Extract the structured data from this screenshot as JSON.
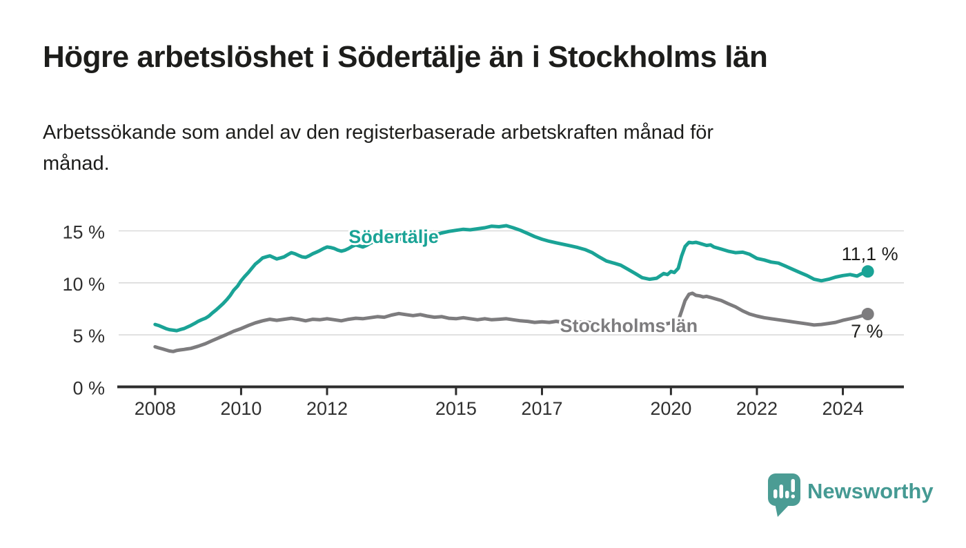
{
  "header": {
    "title": "Högre arbetslöshet i Södertälje än i Stockholms län",
    "subtitle": "Arbetssökande som andel av den registerbaserade arbetskraften månad för månad.",
    "subtitle_lines": [
      "Arbetssökande som andel av den registerbaserade arbetskraften månad för",
      "månad."
    ]
  },
  "chart_data": {
    "type": "line",
    "unit": "%",
    "xlim": [
      2007.12,
      2025.42
    ],
    "ylim": [
      0,
      15
    ],
    "grid": true,
    "x_ticks": [
      2008,
      2010,
      2012,
      2015,
      2017,
      2020,
      2022,
      2024
    ],
    "x_tick_labels": [
      "2008",
      "2010",
      "2012",
      "2015",
      "2017",
      "2020",
      "2022",
      "2024"
    ],
    "y_ticks": [
      0,
      5,
      10,
      15
    ],
    "y_tick_labels": [
      "0 %",
      "5 %",
      "10 %",
      "15 %"
    ],
    "colors": {
      "sodertalje": "#1aa396",
      "stockholms_lan": "#7d7c7e",
      "axis": "#2d2d2d",
      "gridline": "#d9d9d9",
      "text": "#1d1d1b"
    },
    "series": [
      {
        "id": "sodertalje",
        "name": "Södertälje",
        "color": "#1aa396",
        "label_anchor": {
          "x": 2013.55,
          "v": 13.84
        },
        "end_label": "11,1 %",
        "end_value": 11.1,
        "end_label_offset": [
          44,
          -16.5
        ],
        "points": [
          [
            2008.0,
            6.0
          ],
          [
            2008.08,
            5.9
          ],
          [
            2008.17,
            5.75
          ],
          [
            2008.25,
            5.6
          ],
          [
            2008.33,
            5.5
          ],
          [
            2008.42,
            5.45
          ],
          [
            2008.5,
            5.4
          ],
          [
            2008.58,
            5.5
          ],
          [
            2008.67,
            5.6
          ],
          [
            2008.75,
            5.75
          ],
          [
            2008.83,
            5.9
          ],
          [
            2008.92,
            6.1
          ],
          [
            2009.0,
            6.3
          ],
          [
            2009.08,
            6.45
          ],
          [
            2009.17,
            6.6
          ],
          [
            2009.25,
            6.8
          ],
          [
            2009.33,
            7.1
          ],
          [
            2009.42,
            7.4
          ],
          [
            2009.5,
            7.7
          ],
          [
            2009.58,
            8.0
          ],
          [
            2009.67,
            8.4
          ],
          [
            2009.75,
            8.8
          ],
          [
            2009.83,
            9.3
          ],
          [
            2009.92,
            9.7
          ],
          [
            2010.0,
            10.2
          ],
          [
            2010.08,
            10.6
          ],
          [
            2010.17,
            11.0
          ],
          [
            2010.25,
            11.4
          ],
          [
            2010.33,
            11.8
          ],
          [
            2010.42,
            12.1
          ],
          [
            2010.5,
            12.4
          ],
          [
            2010.58,
            12.5
          ],
          [
            2010.67,
            12.6
          ],
          [
            2010.75,
            12.45
          ],
          [
            2010.83,
            12.3
          ],
          [
            2010.92,
            12.4
          ],
          [
            2011.0,
            12.5
          ],
          [
            2011.08,
            12.7
          ],
          [
            2011.17,
            12.9
          ],
          [
            2011.25,
            12.8
          ],
          [
            2011.33,
            12.65
          ],
          [
            2011.42,
            12.5
          ],
          [
            2011.5,
            12.45
          ],
          [
            2011.58,
            12.6
          ],
          [
            2011.67,
            12.8
          ],
          [
            2011.75,
            12.95
          ],
          [
            2011.83,
            13.1
          ],
          [
            2011.92,
            13.3
          ],
          [
            2012.0,
            13.45
          ],
          [
            2012.08,
            13.4
          ],
          [
            2012.17,
            13.3
          ],
          [
            2012.25,
            13.15
          ],
          [
            2012.33,
            13.05
          ],
          [
            2012.42,
            13.15
          ],
          [
            2012.5,
            13.3
          ],
          [
            2012.58,
            13.5
          ],
          [
            2012.67,
            13.65
          ],
          [
            2012.75,
            13.55
          ],
          [
            2012.83,
            13.45
          ],
          [
            2012.92,
            13.6
          ],
          [
            2013.0,
            13.8
          ],
          [
            2013.08,
            13.95
          ],
          [
            2013.17,
            14.1
          ],
          [
            2013.25,
            14.05
          ],
          [
            2013.33,
            13.95
          ],
          [
            2013.42,
            14.05
          ],
          [
            2013.5,
            14.2
          ],
          [
            2013.58,
            14.3
          ],
          [
            2013.67,
            14.25
          ],
          [
            2013.75,
            14.15
          ],
          [
            2013.83,
            14.2
          ],
          [
            2013.92,
            14.3
          ],
          [
            2014.0,
            14.4
          ],
          [
            2014.17,
            14.55
          ],
          [
            2014.33,
            14.45
          ],
          [
            2014.5,
            14.6
          ],
          [
            2014.67,
            14.8
          ],
          [
            2014.83,
            14.95
          ],
          [
            2015.0,
            15.05
          ],
          [
            2015.17,
            15.15
          ],
          [
            2015.33,
            15.1
          ],
          [
            2015.5,
            15.2
          ],
          [
            2015.67,
            15.3
          ],
          [
            2015.83,
            15.45
          ],
          [
            2016.0,
            15.4
          ],
          [
            2016.17,
            15.5
          ],
          [
            2016.33,
            15.3
          ],
          [
            2016.5,
            15.05
          ],
          [
            2016.67,
            14.75
          ],
          [
            2016.83,
            14.45
          ],
          [
            2017.0,
            14.2
          ],
          [
            2017.17,
            14.0
          ],
          [
            2017.33,
            13.85
          ],
          [
            2017.5,
            13.7
          ],
          [
            2017.67,
            13.55
          ],
          [
            2017.83,
            13.4
          ],
          [
            2018.0,
            13.2
          ],
          [
            2018.17,
            12.9
          ],
          [
            2018.33,
            12.5
          ],
          [
            2018.5,
            12.1
          ],
          [
            2018.67,
            11.9
          ],
          [
            2018.83,
            11.7
          ],
          [
            2019.0,
            11.3
          ],
          [
            2019.17,
            10.9
          ],
          [
            2019.33,
            10.5
          ],
          [
            2019.5,
            10.35
          ],
          [
            2019.67,
            10.45
          ],
          [
            2019.83,
            10.9
          ],
          [
            2019.92,
            10.8
          ],
          [
            2020.0,
            11.1
          ],
          [
            2020.08,
            11.0
          ],
          [
            2020.17,
            11.4
          ],
          [
            2020.25,
            12.6
          ],
          [
            2020.33,
            13.5
          ],
          [
            2020.42,
            13.9
          ],
          [
            2020.5,
            13.85
          ],
          [
            2020.58,
            13.9
          ],
          [
            2020.67,
            13.8
          ],
          [
            2020.75,
            13.7
          ],
          [
            2020.83,
            13.6
          ],
          [
            2020.92,
            13.65
          ],
          [
            2021.0,
            13.45
          ],
          [
            2021.17,
            13.25
          ],
          [
            2021.33,
            13.05
          ],
          [
            2021.5,
            12.9
          ],
          [
            2021.67,
            12.95
          ],
          [
            2021.83,
            12.75
          ],
          [
            2022.0,
            12.35
          ],
          [
            2022.17,
            12.2
          ],
          [
            2022.33,
            12.0
          ],
          [
            2022.5,
            11.9
          ],
          [
            2022.67,
            11.6
          ],
          [
            2022.83,
            11.3
          ],
          [
            2023.0,
            11.0
          ],
          [
            2023.17,
            10.7
          ],
          [
            2023.33,
            10.35
          ],
          [
            2023.5,
            10.2
          ],
          [
            2023.67,
            10.35
          ],
          [
            2023.83,
            10.55
          ],
          [
            2024.0,
            10.7
          ],
          [
            2024.17,
            10.8
          ],
          [
            2024.33,
            10.65
          ],
          [
            2024.42,
            10.85
          ],
          [
            2024.58,
            11.1
          ]
        ]
      },
      {
        "id": "stockholms-lan",
        "name": "Stockholms län",
        "color": "#7d7c7e",
        "label_anchor": {
          "x": 2019.02,
          "v": 5.28
        },
        "end_label": "7 %",
        "end_value": 7.0,
        "end_label_offset": [
          22,
          34
        ],
        "points": [
          [
            2008.0,
            3.85
          ],
          [
            2008.08,
            3.75
          ],
          [
            2008.17,
            3.65
          ],
          [
            2008.25,
            3.55
          ],
          [
            2008.33,
            3.45
          ],
          [
            2008.42,
            3.4
          ],
          [
            2008.5,
            3.5
          ],
          [
            2008.58,
            3.55
          ],
          [
            2008.67,
            3.6
          ],
          [
            2008.75,
            3.65
          ],
          [
            2008.83,
            3.7
          ],
          [
            2008.92,
            3.8
          ],
          [
            2009.0,
            3.9
          ],
          [
            2009.17,
            4.15
          ],
          [
            2009.33,
            4.45
          ],
          [
            2009.5,
            4.75
          ],
          [
            2009.67,
            5.05
          ],
          [
            2009.83,
            5.35
          ],
          [
            2010.0,
            5.6
          ],
          [
            2010.17,
            5.9
          ],
          [
            2010.33,
            6.15
          ],
          [
            2010.5,
            6.35
          ],
          [
            2010.67,
            6.5
          ],
          [
            2010.83,
            6.4
          ],
          [
            2011.0,
            6.5
          ],
          [
            2011.17,
            6.6
          ],
          [
            2011.33,
            6.5
          ],
          [
            2011.5,
            6.35
          ],
          [
            2011.67,
            6.5
          ],
          [
            2011.83,
            6.45
          ],
          [
            2012.0,
            6.55
          ],
          [
            2012.17,
            6.45
          ],
          [
            2012.33,
            6.35
          ],
          [
            2012.5,
            6.5
          ],
          [
            2012.67,
            6.6
          ],
          [
            2012.83,
            6.55
          ],
          [
            2013.0,
            6.65
          ],
          [
            2013.17,
            6.75
          ],
          [
            2013.33,
            6.7
          ],
          [
            2013.5,
            6.9
          ],
          [
            2013.67,
            7.05
          ],
          [
            2013.83,
            6.95
          ],
          [
            2014.0,
            6.85
          ],
          [
            2014.17,
            6.95
          ],
          [
            2014.33,
            6.8
          ],
          [
            2014.5,
            6.7
          ],
          [
            2014.67,
            6.75
          ],
          [
            2014.83,
            6.6
          ],
          [
            2015.0,
            6.55
          ],
          [
            2015.17,
            6.65
          ],
          [
            2015.33,
            6.55
          ],
          [
            2015.5,
            6.45
          ],
          [
            2015.67,
            6.55
          ],
          [
            2015.83,
            6.45
          ],
          [
            2016.0,
            6.5
          ],
          [
            2016.17,
            6.55
          ],
          [
            2016.33,
            6.45
          ],
          [
            2016.5,
            6.35
          ],
          [
            2016.67,
            6.3
          ],
          [
            2016.83,
            6.2
          ],
          [
            2017.0,
            6.25
          ],
          [
            2017.17,
            6.2
          ],
          [
            2017.33,
            6.3
          ],
          [
            2017.5,
            6.2
          ],
          [
            2017.67,
            6.1
          ],
          [
            2017.83,
            6.2
          ],
          [
            2018.0,
            6.25
          ],
          [
            2018.17,
            6.15
          ],
          [
            2018.33,
            6.1
          ],
          [
            2018.5,
            6.2
          ],
          [
            2018.67,
            6.1
          ],
          [
            2018.83,
            6.0
          ],
          [
            2019.0,
            6.1
          ],
          [
            2019.17,
            6.0
          ],
          [
            2019.33,
            6.1
          ],
          [
            2019.5,
            6.0
          ],
          [
            2019.67,
            5.9
          ],
          [
            2019.83,
            6.0
          ],
          [
            2020.0,
            6.15
          ],
          [
            2020.08,
            6.1
          ],
          [
            2020.17,
            6.35
          ],
          [
            2020.25,
            7.3
          ],
          [
            2020.33,
            8.3
          ],
          [
            2020.42,
            8.9
          ],
          [
            2020.5,
            9.0
          ],
          [
            2020.58,
            8.8
          ],
          [
            2020.67,
            8.75
          ],
          [
            2020.75,
            8.65
          ],
          [
            2020.83,
            8.7
          ],
          [
            2020.92,
            8.6
          ],
          [
            2021.0,
            8.5
          ],
          [
            2021.17,
            8.3
          ],
          [
            2021.33,
            8.0
          ],
          [
            2021.5,
            7.7
          ],
          [
            2021.67,
            7.3
          ],
          [
            2021.83,
            7.0
          ],
          [
            2022.0,
            6.8
          ],
          [
            2022.17,
            6.65
          ],
          [
            2022.33,
            6.55
          ],
          [
            2022.5,
            6.45
          ],
          [
            2022.67,
            6.35
          ],
          [
            2022.83,
            6.25
          ],
          [
            2023.0,
            6.15
          ],
          [
            2023.17,
            6.05
          ],
          [
            2023.33,
            5.95
          ],
          [
            2023.5,
            6.0
          ],
          [
            2023.67,
            6.1
          ],
          [
            2023.83,
            6.2
          ],
          [
            2024.0,
            6.4
          ],
          [
            2024.17,
            6.55
          ],
          [
            2024.33,
            6.7
          ],
          [
            2024.42,
            6.8
          ],
          [
            2024.58,
            7.0
          ]
        ]
      }
    ]
  },
  "footer": {
    "brand": "Newsworthy",
    "brand_color": "#459a93",
    "icon": "newsworthy-bubble-barchart-icon"
  }
}
